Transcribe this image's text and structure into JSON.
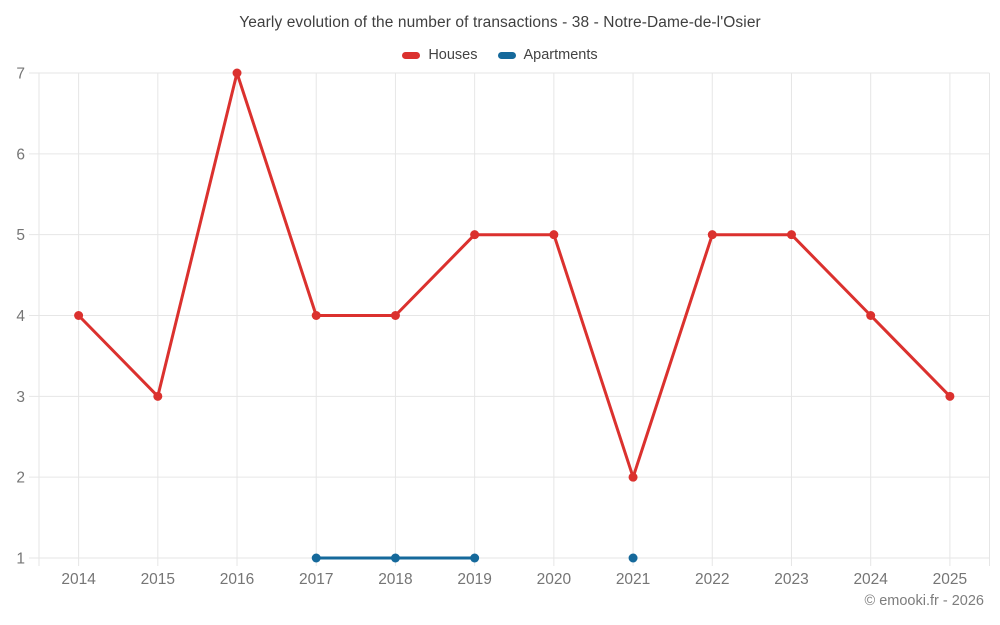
{
  "title": "Yearly evolution of the number of transactions - 38 - Notre-Dame-de-l'Osier",
  "legend": {
    "items": [
      {
        "label": "Houses",
        "color": "#db312e"
      },
      {
        "label": "Apartments",
        "color": "#15699b"
      }
    ]
  },
  "watermark": "© emooki.fr - 2026",
  "chart_data": {
    "type": "line",
    "title": "Yearly evolution of the number of transactions - 38 - Notre-Dame-de-l'Osier",
    "x": [
      2014,
      2015,
      2016,
      2017,
      2018,
      2019,
      2020,
      2021,
      2022,
      2023,
      2024,
      2025
    ],
    "series": [
      {
        "name": "Houses",
        "color": "#db312e",
        "values": [
          4,
          3,
          7,
          4,
          4,
          5,
          5,
          2,
          5,
          5,
          4,
          3
        ]
      },
      {
        "name": "Apartments",
        "color": "#15699b",
        "values": [
          null,
          null,
          null,
          1,
          1,
          1,
          null,
          1,
          null,
          null,
          null,
          null
        ]
      }
    ],
    "xlabel": "",
    "ylabel": "",
    "ylim": [
      1,
      7
    ],
    "yticks": [
      1,
      2,
      3,
      4,
      5,
      6,
      7
    ],
    "grid": true,
    "legend_position": "top"
  },
  "colors": {
    "grid": "#e6e6e6",
    "axis_text": "#757575",
    "title_text": "#3f3f3f",
    "watermark_text": "#7d7d7d",
    "background": "#ffffff"
  }
}
